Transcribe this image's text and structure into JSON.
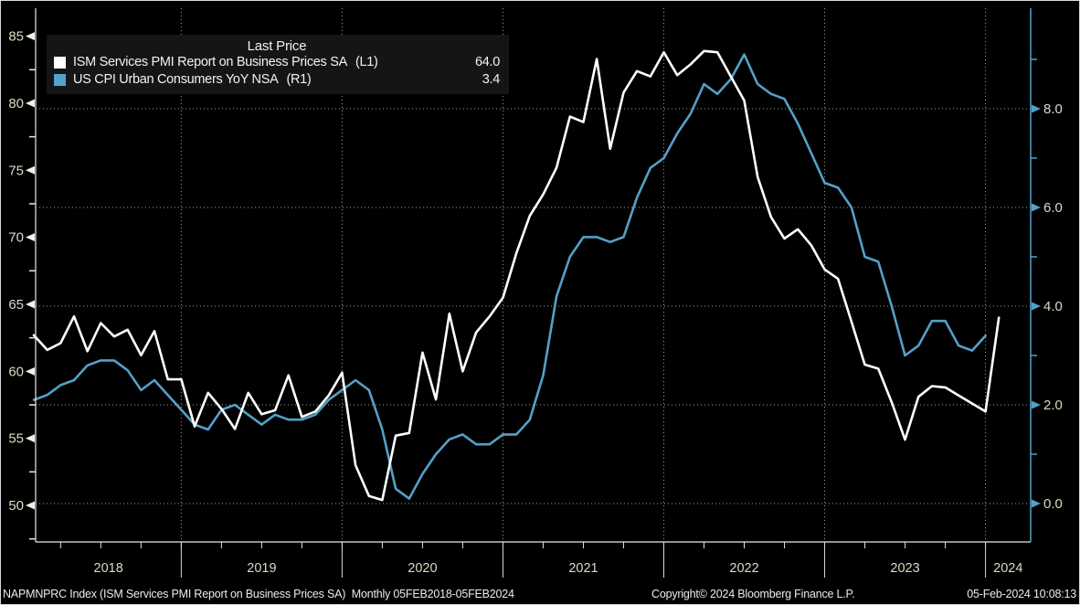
{
  "legend": {
    "title": "Last Price",
    "items": [
      {
        "name": "ISM Services PMI Report on Business Prices SA",
        "axis_tag": "(L1)",
        "value": "64.0",
        "swatch_color": "#ffffff"
      },
      {
        "name": "US CPI Urban Consumers YoY NSA",
        "axis_tag": "(R1)",
        "value": "3.4",
        "swatch_color": "#56a1c9"
      }
    ]
  },
  "status_bar": {
    "left": "NAPMNPRC Index (ISM Services PMI Report on Business Prices SA)  Monthly 05FEB2018-05FEB2024",
    "center": "Copyright© 2024 Bloomberg Finance L.P.",
    "right": "05-Feb-2024 10:08:13"
  },
  "chart_data": {
    "type": "line",
    "title": "Last Price",
    "x_start": "2018-02",
    "x_end": "2024-02",
    "frequency": "monthly",
    "background": "#000000",
    "grid_color": "#9aA0a0",
    "axis_label_color": "#ded8c3",
    "x_axis": {
      "tick_labels": [
        "2018",
        "2019",
        "2020",
        "2021",
        "2022",
        "2023",
        "2024"
      ],
      "year_boundary_month_index": [
        11,
        23,
        35,
        47,
        59,
        71
      ]
    },
    "left_axis": {
      "series": "ISM Services PMI Report on Business Prices SA",
      "tick_values": [
        50,
        55,
        60,
        65,
        70,
        75,
        80,
        85
      ],
      "minor_tick_values": [
        47.5,
        52.5,
        57.5,
        62.5,
        67.5,
        72.5,
        77.5,
        82.5
      ],
      "range": [
        47.3,
        87.1
      ],
      "color": "#e8e8e8"
    },
    "right_axis": {
      "series": "US CPI Urban Consumers YoY NSA",
      "tick_labels": [
        "0.0",
        "2.0",
        "4.0",
        "6.0",
        "8.0"
      ],
      "tick_values": [
        0,
        2,
        4,
        6,
        8
      ],
      "minor_tick_values": [
        1,
        3,
        5,
        7,
        9
      ],
      "gridline_values": [
        0,
        2,
        4,
        6,
        8
      ],
      "range": [
        -0.78,
        10.8
      ],
      "color": "#54a0c8"
    },
    "series": [
      {
        "name": "ISM Services PMI Report on Business Prices SA",
        "axis": "L1",
        "color": "#ffffff",
        "last_price": 64.0,
        "values": [
          62.7,
          61.6,
          62.1,
          64.1,
          61.5,
          63.6,
          62.6,
          63.1,
          61.2,
          63.0,
          59.4,
          59.4,
          55.9,
          58.4,
          57.2,
          55.7,
          58.4,
          56.8,
          57.1,
          59.7,
          56.6,
          57.0,
          58.2,
          59.9,
          53.0,
          50.7,
          50.4,
          55.2,
          55.4,
          61.4,
          57.9,
          64.3,
          60.0,
          62.9,
          64.1,
          65.5,
          68.8,
          71.6,
          73.2,
          75.2,
          79.0,
          78.6,
          83.3,
          76.6,
          80.8,
          82.4,
          82.0,
          83.8,
          82.1,
          82.9,
          83.9,
          83.8,
          82.0,
          80.2,
          74.5,
          71.5,
          69.9,
          70.6,
          69.4,
          67.6,
          66.9,
          63.7,
          60.5,
          60.2,
          57.7,
          54.9,
          58.1,
          58.9,
          58.8,
          58.2,
          57.6,
          57.0,
          64.0
        ]
      },
      {
        "name": "US CPI Urban Consumers YoY NSA",
        "axis": "R1",
        "color": "#54a0c8",
        "last_price": 3.4,
        "values": [
          2.1,
          2.2,
          2.4,
          2.5,
          2.8,
          2.9,
          2.9,
          2.7,
          2.3,
          2.5,
          2.2,
          1.9,
          1.6,
          1.5,
          1.9,
          2.0,
          1.8,
          1.6,
          1.8,
          1.7,
          1.7,
          1.8,
          2.1,
          2.3,
          2.5,
          2.3,
          1.5,
          0.3,
          0.1,
          0.6,
          1.0,
          1.3,
          1.4,
          1.2,
          1.2,
          1.4,
          1.4,
          1.7,
          2.6,
          4.2,
          5.0,
          5.4,
          5.4,
          5.3,
          5.4,
          6.2,
          6.8,
          7.0,
          7.5,
          7.9,
          8.5,
          8.3,
          8.6,
          9.1,
          8.5,
          8.3,
          8.2,
          7.7,
          7.1,
          6.5,
          6.4,
          6.0,
          5.0,
          4.9,
          4.0,
          3.0,
          3.2,
          3.7,
          3.7,
          3.2,
          3.1,
          3.4
        ]
      }
    ],
    "legend_position": "top-left",
    "grid": true
  }
}
